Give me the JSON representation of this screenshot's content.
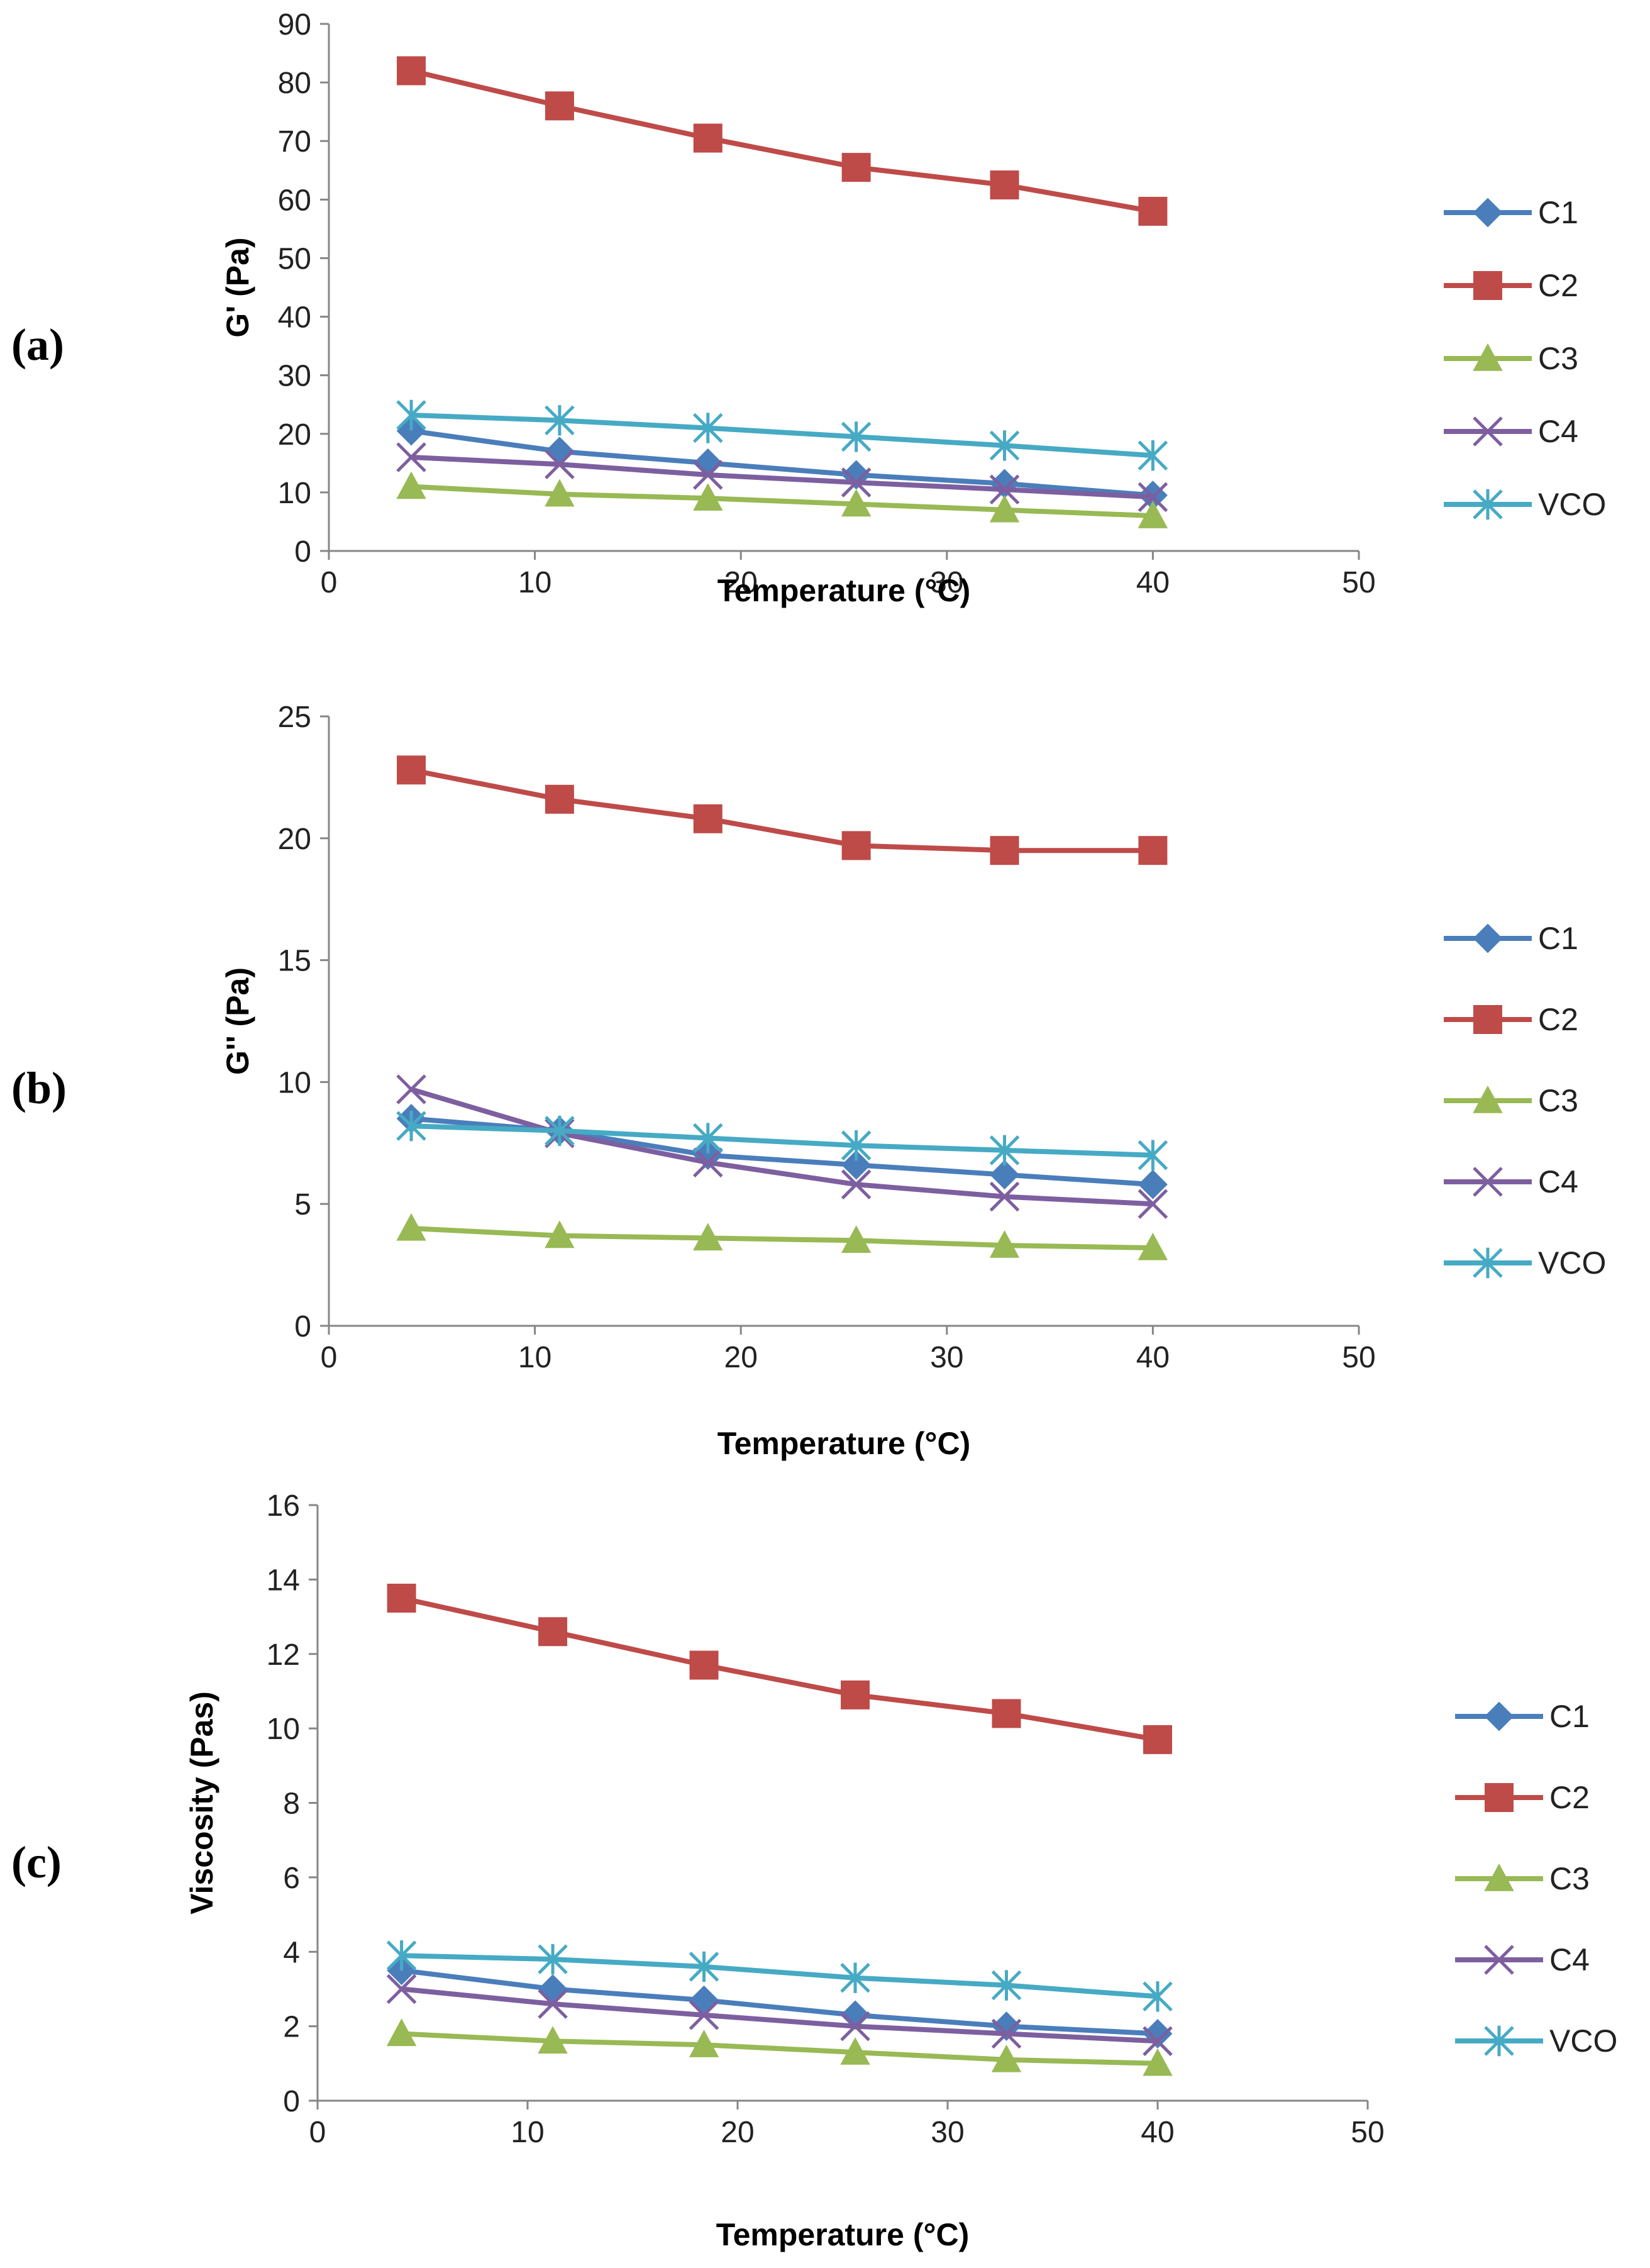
{
  "figure": {
    "series_styles": [
      {
        "name": "C1",
        "color": "#4A7EBB",
        "marker": "diamond"
      },
      {
        "name": "C2",
        "color": "#BE4B48",
        "marker": "square"
      },
      {
        "name": "C3",
        "color": "#98B954",
        "marker": "triangle"
      },
      {
        "name": "C4",
        "color": "#7D5FA0",
        "marker": "x"
      },
      {
        "name": "VCO",
        "color": "#46AAC5",
        "marker": "star"
      }
    ]
  },
  "chart_data": [
    {
      "type": "line",
      "panel_label": "(a)",
      "title": "",
      "xlabel": "Temperature (°C)",
      "ylabel": "G' (Pa)",
      "xlim": [
        0,
        50
      ],
      "ylim": [
        0,
        90
      ],
      "xticks": [
        0,
        10,
        20,
        30,
        40,
        50
      ],
      "yticks": [
        0,
        10,
        20,
        30,
        40,
        50,
        60,
        70,
        80,
        90
      ],
      "grid": false,
      "legend_position": "right",
      "x": [
        4,
        11.2,
        18.4,
        25.6,
        32.8,
        40
      ],
      "series": [
        {
          "name": "C1",
          "values": [
            20.5,
            17,
            15,
            13,
            11.5,
            9.5
          ]
        },
        {
          "name": "C2",
          "values": [
            82,
            76,
            70.5,
            65.5,
            62.5,
            58
          ]
        },
        {
          "name": "C3",
          "values": [
            11,
            9.7,
            9,
            8,
            7,
            6
          ]
        },
        {
          "name": "C4",
          "values": [
            16,
            14.8,
            13,
            11.7,
            10.5,
            9.2
          ]
        },
        {
          "name": "VCO",
          "values": [
            23.2,
            22.3,
            21,
            19.5,
            18,
            16.3
          ]
        }
      ]
    },
    {
      "type": "line",
      "panel_label": "(b)",
      "title": "",
      "xlabel": "Temperature (°C)",
      "ylabel": "G'' (Pa)",
      "xlim": [
        0,
        50
      ],
      "ylim": [
        0,
        25
      ],
      "xticks": [
        0,
        10,
        20,
        30,
        40,
        50
      ],
      "yticks": [
        0,
        5,
        10,
        15,
        20,
        25
      ],
      "grid": false,
      "legend_position": "right",
      "x": [
        4,
        11.2,
        18.4,
        25.6,
        32.8,
        40
      ],
      "series": [
        {
          "name": "C1",
          "values": [
            8.5,
            8,
            7,
            6.6,
            6.2,
            5.8
          ]
        },
        {
          "name": "C2",
          "values": [
            22.8,
            21.6,
            20.8,
            19.7,
            19.5,
            19.5
          ]
        },
        {
          "name": "C3",
          "values": [
            4,
            3.7,
            3.6,
            3.5,
            3.3,
            3.2
          ]
        },
        {
          "name": "C4",
          "values": [
            9.7,
            7.9,
            6.7,
            5.8,
            5.3,
            5
          ]
        },
        {
          "name": "VCO",
          "values": [
            8.2,
            8,
            7.7,
            7.4,
            7.2,
            7
          ]
        }
      ]
    },
    {
      "type": "line",
      "panel_label": "(c)",
      "title": "",
      "xlabel": "Temperature (°C)",
      "ylabel": "Viscosity (Pas)",
      "xlim": [
        0,
        50
      ],
      "ylim": [
        0,
        16
      ],
      "xticks": [
        0,
        10,
        20,
        30,
        40,
        50
      ],
      "yticks": [
        0,
        2,
        4,
        6,
        8,
        10,
        12,
        14,
        16
      ],
      "grid": false,
      "legend_position": "right",
      "x": [
        4,
        11.2,
        18.4,
        25.6,
        32.8,
        40
      ],
      "series": [
        {
          "name": "C1",
          "values": [
            3.5,
            3,
            2.7,
            2.3,
            2,
            1.8
          ]
        },
        {
          "name": "C2",
          "values": [
            13.5,
            12.6,
            11.7,
            10.9,
            10.4,
            9.7
          ]
        },
        {
          "name": "C3",
          "values": [
            1.8,
            1.6,
            1.5,
            1.3,
            1.1,
            1
          ]
        },
        {
          "name": "C4",
          "values": [
            3,
            2.6,
            2.3,
            2,
            1.8,
            1.6
          ]
        },
        {
          "name": "VCO",
          "values": [
            3.9,
            3.8,
            3.6,
            3.3,
            3.1,
            2.8
          ]
        }
      ]
    }
  ]
}
